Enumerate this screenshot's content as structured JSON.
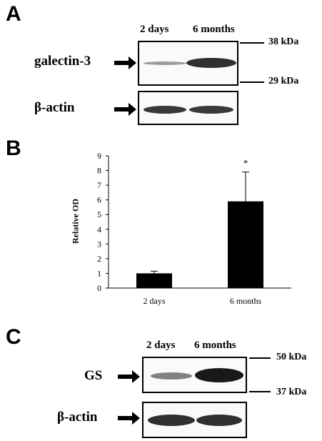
{
  "panel_a": {
    "letter": "A",
    "lanes": [
      "2 days",
      "6 months"
    ],
    "markers": [
      "38 kDa",
      "29 kDa"
    ],
    "rows": [
      {
        "label": "galectin-3",
        "bands": [
          {
            "lane": "2 days",
            "intensity": 0.25
          },
          {
            "lane": "6 months",
            "intensity": 0.85
          }
        ]
      },
      {
        "label": "β-actin",
        "bands": [
          {
            "lane": "2 days",
            "intensity": 0.8
          },
          {
            "lane": "6 months",
            "intensity": 0.8
          }
        ]
      }
    ]
  },
  "panel_b": {
    "letter": "B",
    "chart_data": {
      "type": "bar",
      "categories": [
        "2 days",
        "6 months"
      ],
      "values": [
        1.0,
        5.9
      ],
      "error": [
        0.15,
        2.0
      ],
      "ylabel": "Relative OD",
      "xlabel": "",
      "ylim": [
        0,
        9
      ],
      "yticks": [
        0,
        1,
        2,
        3,
        4,
        5,
        6,
        7,
        8,
        9
      ],
      "significance": [
        {
          "category": "6 months",
          "mark": "*"
        }
      ],
      "grid": false,
      "bar_color": "#000000"
    }
  },
  "panel_c": {
    "letter": "C",
    "lanes": [
      "2 days",
      "6 months"
    ],
    "markers": [
      "50 kDa",
      "37 kDa"
    ],
    "rows": [
      {
        "label": "GS",
        "bands": [
          {
            "lane": "2 days",
            "intensity": 0.45
          },
          {
            "lane": "6 months",
            "intensity": 0.95
          }
        ]
      },
      {
        "label": "β-actin",
        "bands": [
          {
            "lane": "2 days",
            "intensity": 0.85
          },
          {
            "lane": "6 months",
            "intensity": 0.85
          }
        ]
      }
    ]
  }
}
